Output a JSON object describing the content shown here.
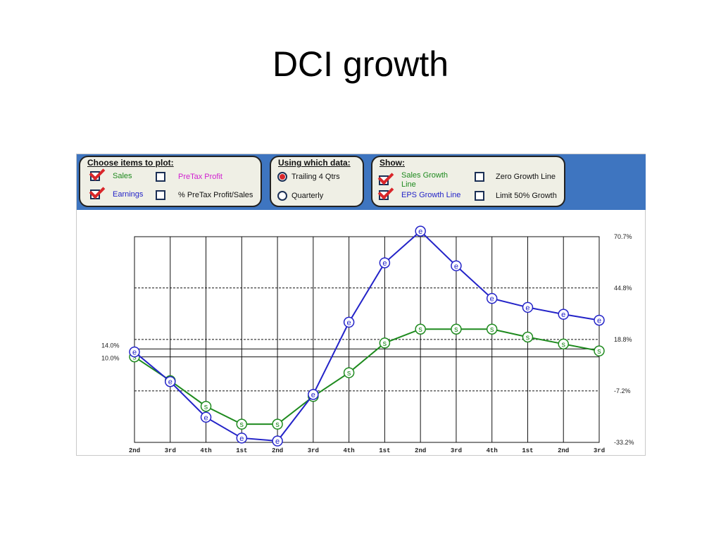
{
  "slide": {
    "title": "DCI growth"
  },
  "controls": {
    "plot_group": {
      "title": "Choose items to plot:",
      "sales_label": "Sales",
      "earnings_label": "Earnings",
      "pretax_label": "PreTax Profit",
      "pretax_sales_label": "% PreTax Profit/Sales",
      "sales_checked": true,
      "earnings_checked": true,
      "pretax_checked": false,
      "pretax_sales_checked": false
    },
    "data_group": {
      "title": "Using which data:",
      "trailing_label": "Trailing 4 Qtrs",
      "quarterly_label": "Quarterly",
      "selected": "Trailing 4 Qtrs"
    },
    "show_group": {
      "title": "Show:",
      "sales_growth_label": "Sales Growth Line",
      "eps_growth_label": "EPS Growth Line",
      "zero_growth_label": "Zero Growth Line",
      "limit_label": "Limit 50% Growth",
      "sales_growth_checked": true,
      "eps_growth_checked": true,
      "zero_growth_checked": false,
      "limit_checked": false
    }
  },
  "colors": {
    "sales": "#1e8a1e",
    "earnings": "#2323c8",
    "pretax": "#d020d0",
    "control_bar": "#3e75c0"
  },
  "chart_data": {
    "type": "line",
    "categories": [
      "2nd",
      "3rd",
      "4th",
      "1st",
      "2nd",
      "3rd",
      "4th",
      "1st",
      "2nd",
      "3rd",
      "4th",
      "1st",
      "2nd",
      "3rd"
    ],
    "series": [
      {
        "name": "Sales",
        "marker": "s",
        "values": [
          10.0,
          -2.0,
          -15.0,
          -24.0,
          -24.0,
          -10.0,
          2.0,
          17.0,
          24.0,
          24.0,
          24.0,
          20.0,
          16.5,
          13.0
        ]
      },
      {
        "name": "Earnings",
        "marker": "e",
        "values": [
          12.5,
          -2.5,
          -20.5,
          -31.0,
          -32.5,
          -9.0,
          27.5,
          57.5,
          73.5,
          56.0,
          39.5,
          35.0,
          31.5,
          28.5
        ]
      }
    ],
    "right_axis_labels": [
      "70.7%",
      "44.8%",
      "18.8%",
      "-7.2%",
      "-33.2%"
    ],
    "right_axis_values": [
      70.7,
      44.8,
      18.8,
      -7.2,
      -33.2
    ],
    "left_axis_labels": [
      "14.0%",
      "10.0%"
    ],
    "left_axis_values": [
      14.0,
      10.0
    ],
    "ylim": [
      -33.2,
      70.7
    ],
    "grid": true,
    "title": "",
    "xlabel": "",
    "ylabel": ""
  }
}
